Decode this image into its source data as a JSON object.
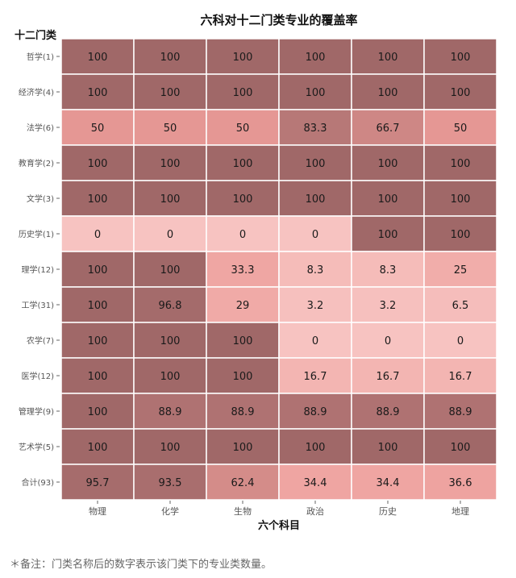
{
  "chart_data": {
    "type": "heatmap",
    "title": "六科对十二门类专业的覆盖率",
    "xlabel": "六个科目",
    "ylabel": "十二门类",
    "columns": [
      "物理",
      "化学",
      "生物",
      "政治",
      "历史",
      "地理"
    ],
    "rows": [
      "哲学(1)",
      "经济学(4)",
      "法学(6)",
      "教育学(2)",
      "文学(3)",
      "历史学(1)",
      "理学(12)",
      "工学(31)",
      "农学(7)",
      "医学(12)",
      "管理学(9)",
      "艺术学(5)",
      "合计(93)"
    ],
    "values": [
      [
        "100",
        "100",
        "100",
        "100",
        "100",
        "100"
      ],
      [
        "100",
        "100",
        "100",
        "100",
        "100",
        "100"
      ],
      [
        "50",
        "50",
        "50",
        "83.3",
        "66.7",
        "50"
      ],
      [
        "100",
        "100",
        "100",
        "100",
        "100",
        "100"
      ],
      [
        "100",
        "100",
        "100",
        "100",
        "100",
        "100"
      ],
      [
        "0",
        "0",
        "0",
        "0",
        "100",
        "100"
      ],
      [
        "100",
        "100",
        "33.3",
        "8.3",
        "8.3",
        "25"
      ],
      [
        "100",
        "96.8",
        "29",
        "3.2",
        "3.2",
        "6.5"
      ],
      [
        "100",
        "100",
        "100",
        "0",
        "0",
        "0"
      ],
      [
        "100",
        "100",
        "100",
        "16.7",
        "16.7",
        "16.7"
      ],
      [
        "100",
        "88.9",
        "88.9",
        "88.9",
        "88.9",
        "88.9"
      ],
      [
        "100",
        "100",
        "100",
        "100",
        "100",
        "100"
      ],
      [
        "95.7",
        "93.5",
        "62.4",
        "34.4",
        "34.4",
        "36.6"
      ]
    ],
    "range": [
      0,
      100
    ],
    "color_low": "#f7c3c1",
    "color_high": "#a06868",
    "grid": false,
    "legend": "none"
  },
  "footnote": "＊备注：门类名称后的数字表示该门类下的专业类数量。"
}
